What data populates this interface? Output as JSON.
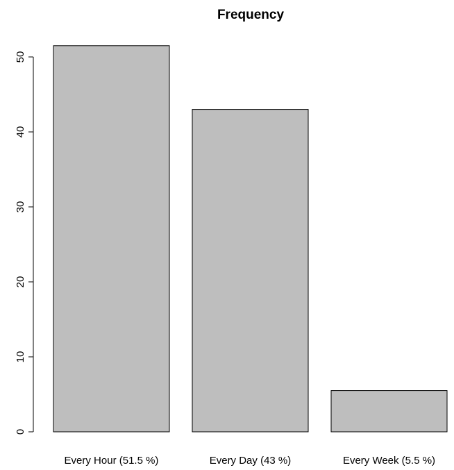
{
  "chart_data": {
    "type": "bar",
    "title": "Frequency",
    "xlabel": "",
    "ylabel": "",
    "categories": [
      "Every Hour (51.5 %)",
      "Every Day (43 %)",
      "Every Week (5.5 %)"
    ],
    "values": [
      51.5,
      43,
      5.5
    ],
    "ylim": [
      0,
      52
    ],
    "yticks": [
      "0",
      "10",
      "20",
      "30",
      "40",
      "50"
    ],
    "bar_color": "#bebebe",
    "outline_color": "#000000",
    "grid": false,
    "legend": "none"
  }
}
